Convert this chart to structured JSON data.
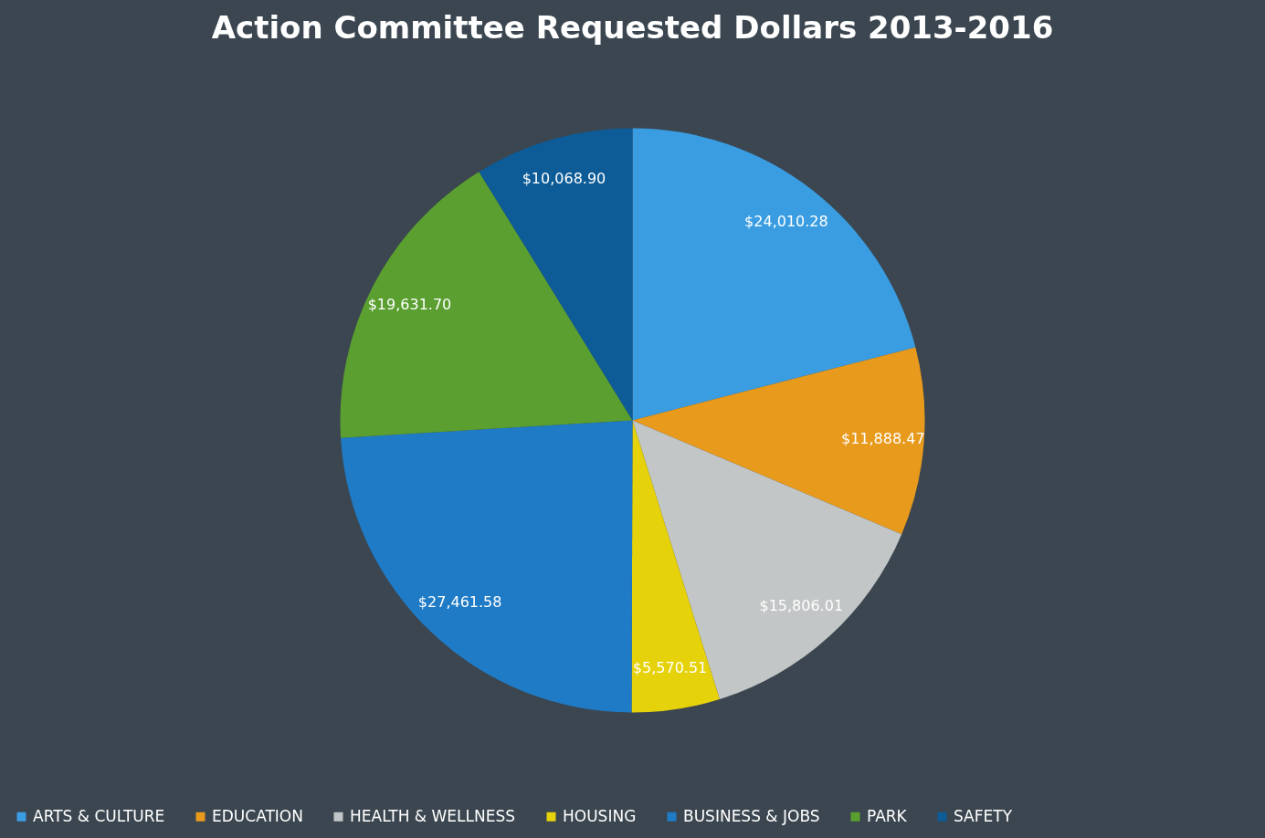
{
  "chart_data": {
    "type": "pie",
    "title": "Action Committee Requested Dollars 2013-2016",
    "categories": [
      "ARTS & CULTURE",
      "EDUCATION",
      "HEALTH & WELLNESS",
      "HOUSING",
      "BUSINESS & JOBS",
      "PARK",
      "SAFETY"
    ],
    "values": [
      24010.28,
      11888.47,
      15806.01,
      5570.51,
      27461.58,
      19631.7,
      10068.9
    ],
    "value_labels": [
      "$24,010.28",
      "$11,888.47",
      "$15,806.01",
      "$5,570.51",
      "$27,461.58",
      "$19,631.70",
      "$10,068.90"
    ],
    "colors": [
      "#3a9de2",
      "#e79a1c",
      "#c2c6c6",
      "#e6d20a",
      "#1f7bc6",
      "#5a9f30",
      "#0d5c98"
    ],
    "legend": "bottom"
  }
}
